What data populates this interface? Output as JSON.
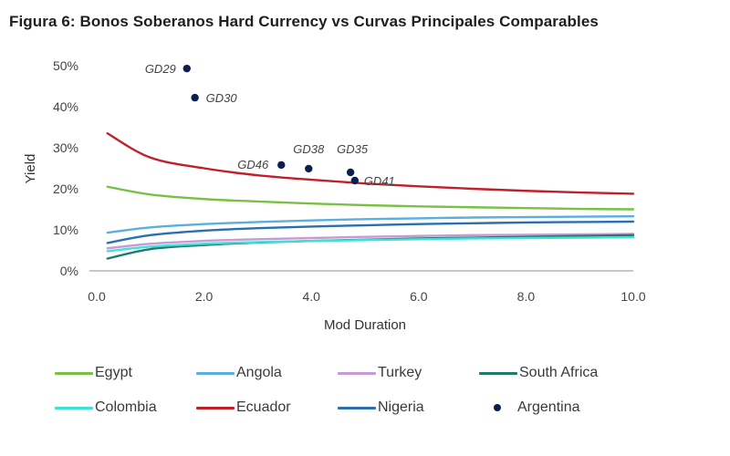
{
  "title": "Figura 6: Bonos Soberanos Hard Currency vs Curvas Principales Comparables",
  "chart_data": {
    "type": "line",
    "title": "Figura 6: Bonos Soberanos Hard Currency vs Curvas Principales Comparables",
    "xlabel": "Mod Duration",
    "ylabel": "Yield",
    "xlim": [
      0,
      10
    ],
    "ylim": [
      0,
      50
    ],
    "x_ticks": [
      "0.0",
      "2.0",
      "4.0",
      "6.0",
      "8.0",
      "10.0"
    ],
    "y_ticks": [
      "0%",
      "10%",
      "20%",
      "30%",
      "40%",
      "50%"
    ],
    "grid": false,
    "legend_position": "bottom",
    "series": [
      {
        "name": "Egypt",
        "kind": "line",
        "color": "#7ac143",
        "x": [
          0.2,
          1,
          2,
          3,
          4,
          5,
          6,
          7,
          8,
          9,
          10
        ],
        "y": [
          20.5,
          18.6,
          17.5,
          16.9,
          16.4,
          16.0,
          15.7,
          15.5,
          15.3,
          15.1,
          15.0
        ]
      },
      {
        "name": "Angola",
        "kind": "line",
        "color": "#5aaee0",
        "x": [
          0.2,
          1,
          2,
          3,
          4,
          5,
          6,
          7,
          8,
          9,
          10
        ],
        "y": [
          9.3,
          10.6,
          11.4,
          11.9,
          12.3,
          12.6,
          12.8,
          13.0,
          13.1,
          13.2,
          13.3
        ]
      },
      {
        "name": "Turkey",
        "kind": "line",
        "color": "#c79ad6",
        "x": [
          0.2,
          1,
          2,
          3,
          4,
          5,
          6,
          7,
          8,
          9,
          10
        ],
        "y": [
          5.5,
          6.6,
          7.3,
          7.7,
          8.0,
          8.3,
          8.5,
          8.7,
          8.8,
          8.9,
          9.0
        ]
      },
      {
        "name": "South Africa",
        "kind": "line",
        "color": "#1f7a6a",
        "x": [
          0.2,
          1,
          2,
          3,
          4,
          5,
          6,
          7,
          8,
          9,
          10
        ],
        "y": [
          3.0,
          5.3,
          6.3,
          6.9,
          7.3,
          7.6,
          7.9,
          8.1,
          8.3,
          8.5,
          8.7
        ]
      },
      {
        "name": "Colombia",
        "kind": "line",
        "color": "#3fe0d8",
        "x": [
          0.2,
          1,
          2,
          3,
          4,
          5,
          6,
          7,
          8,
          9,
          10
        ],
        "y": [
          4.8,
          5.9,
          6.6,
          7.0,
          7.3,
          7.5,
          7.7,
          7.9,
          8.0,
          8.1,
          8.2
        ]
      },
      {
        "name": "Ecuador",
        "kind": "line",
        "color": "#c0202a",
        "x": [
          0.2,
          1,
          2,
          3,
          4,
          5,
          6,
          7,
          8,
          9,
          10
        ],
        "y": [
          33.5,
          27.6,
          25.0,
          23.3,
          22.2,
          21.3,
          20.6,
          20.0,
          19.5,
          19.1,
          18.8
        ]
      },
      {
        "name": "Nigeria",
        "kind": "line",
        "color": "#2a6fb0",
        "x": [
          0.2,
          1,
          2,
          3,
          4,
          5,
          6,
          7,
          8,
          9,
          10
        ],
        "y": [
          6.8,
          8.7,
          9.8,
          10.4,
          10.8,
          11.1,
          11.4,
          11.6,
          11.8,
          11.9,
          12.0
        ]
      },
      {
        "name": "Argentina",
        "kind": "scatter",
        "color": "#0d1f4f",
        "points": [
          {
            "label": "GD29",
            "x": 1.68,
            "y": 49.3
          },
          {
            "label": "GD30",
            "x": 1.83,
            "y": 42.2
          },
          {
            "label": "GD46",
            "x": 3.44,
            "y": 25.8
          },
          {
            "label": "GD38",
            "x": 3.95,
            "y": 24.9
          },
          {
            "label": "GD35",
            "x": 4.73,
            "y": 24.0
          },
          {
            "label": "GD41",
            "x": 4.81,
            "y": 22.0
          }
        ]
      }
    ]
  },
  "legend": [
    {
      "name": "Egypt",
      "kind": "line",
      "color": "#7ac143"
    },
    {
      "name": "Angola",
      "kind": "line",
      "color": "#5aaee0"
    },
    {
      "name": "Turkey",
      "kind": "line",
      "color": "#c79ad6"
    },
    {
      "name": "South Africa",
      "kind": "line",
      "color": "#1f7a6a"
    },
    {
      "name": "Colombia",
      "kind": "line",
      "color": "#3fe0d8"
    },
    {
      "name": "Ecuador",
      "kind": "line",
      "color": "#c0202a"
    },
    {
      "name": "Nigeria",
      "kind": "line",
      "color": "#2a6fb0"
    },
    {
      "name": "Argentina",
      "kind": "dot",
      "color": "#0d1f4f"
    }
  ]
}
